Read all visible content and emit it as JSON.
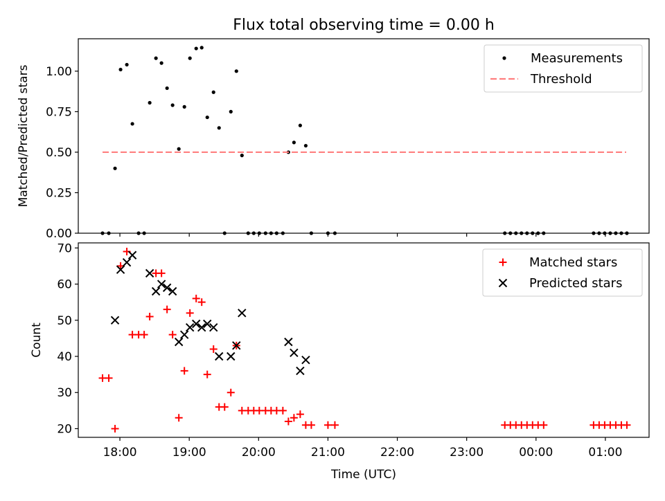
{
  "title": "Flux total observing time = 0.00 h",
  "chart_data": [
    {
      "type": "scatter",
      "ylabel": "Matched/Predicted stars",
      "xlabel": "",
      "xlim": [
        17.4,
        25.63
      ],
      "ylim": [
        0,
        1.2
      ],
      "yticks": [
        0.0,
        0.25,
        0.5,
        0.75,
        1.0
      ],
      "ytick_labels": [
        "0.00",
        "0.25",
        "0.50",
        "0.75",
        "1.00"
      ],
      "legend_position": "top-right",
      "series": [
        {
          "name": "Measurements",
          "marker": "dot",
          "color": "#000000",
          "points": [
            [
              17.75,
              0
            ],
            [
              17.84,
              0
            ],
            [
              17.93,
              0.4
            ],
            [
              18.01,
              1.01
            ],
            [
              18.1,
              1.04
            ],
            [
              18.18,
              0.675
            ],
            [
              18.27,
              0
            ],
            [
              18.35,
              0
            ],
            [
              18.43,
              0.805
            ],
            [
              18.52,
              1.08
            ],
            [
              18.6,
              1.05
            ],
            [
              18.68,
              0.895
            ],
            [
              18.76,
              0.79
            ],
            [
              18.85,
              0.52
            ],
            [
              18.93,
              0.78
            ],
            [
              19.01,
              1.08
            ],
            [
              19.1,
              1.14
            ],
            [
              19.18,
              1.145
            ],
            [
              19.26,
              0.715
            ],
            [
              19.35,
              0.87
            ],
            [
              19.43,
              0.65
            ],
            [
              19.51,
              0
            ],
            [
              19.6,
              0.75
            ],
            [
              19.68,
              1.0
            ],
            [
              19.76,
              0.48
            ],
            [
              19.85,
              0
            ],
            [
              19.93,
              0
            ],
            [
              20.01,
              0
            ],
            [
              20.1,
              0
            ],
            [
              20.18,
              0
            ],
            [
              20.26,
              0
            ],
            [
              20.35,
              0
            ],
            [
              20.43,
              0.5
            ],
            [
              20.51,
              0.56
            ],
            [
              20.6,
              0.665
            ],
            [
              20.68,
              0.54
            ],
            [
              20.76,
              0
            ],
            [
              21.0,
              0
            ],
            [
              21.1,
              0
            ],
            [
              23.55,
              0
            ],
            [
              23.63,
              0
            ],
            [
              23.71,
              0
            ],
            [
              23.79,
              0
            ],
            [
              23.87,
              0
            ],
            [
              23.95,
              0
            ],
            [
              24.03,
              0
            ],
            [
              24.11,
              0
            ],
            [
              24.83,
              0
            ],
            [
              24.91,
              0
            ],
            [
              24.99,
              0
            ],
            [
              25.07,
              0
            ],
            [
              25.15,
              0
            ],
            [
              25.23,
              0
            ],
            [
              25.31,
              0
            ]
          ]
        },
        {
          "name": "Threshold",
          "line_style": "dashed",
          "color": "#ff7f7f",
          "x": [
            17.75,
            25.3
          ],
          "y": [
            0.5,
            0.5
          ]
        }
      ]
    },
    {
      "type": "scatter",
      "ylabel": "Count",
      "xlabel": "Time (UTC)",
      "xlim": [
        17.4,
        25.63
      ],
      "ylim": [
        17.6,
        71.4
      ],
      "yticks": [
        20,
        30,
        40,
        50,
        60,
        70
      ],
      "ytick_labels": [
        "20",
        "30",
        "40",
        "50",
        "60",
        "70"
      ],
      "xticks": [
        18,
        19,
        20,
        21,
        22,
        23,
        24,
        25
      ],
      "xtick_labels": [
        "18:00",
        "19:00",
        "20:00",
        "21:00",
        "22:00",
        "23:00",
        "00:00",
        "01:00"
      ],
      "legend_position": "top-right",
      "series": [
        {
          "name": "Matched stars",
          "marker": "plus",
          "color": "#ff0000",
          "points": [
            [
              17.75,
              34
            ],
            [
              17.84,
              34
            ],
            [
              17.93,
              20
            ],
            [
              18.01,
              65
            ],
            [
              18.1,
              69
            ],
            [
              18.18,
              46
            ],
            [
              18.27,
              46
            ],
            [
              18.35,
              46
            ],
            [
              18.43,
              51
            ],
            [
              18.52,
              63
            ],
            [
              18.6,
              63
            ],
            [
              18.68,
              53
            ],
            [
              18.76,
              46
            ],
            [
              18.85,
              23
            ],
            [
              18.93,
              36
            ],
            [
              19.01,
              52
            ],
            [
              19.1,
              56
            ],
            [
              19.18,
              55
            ],
            [
              19.26,
              35
            ],
            [
              19.35,
              42
            ],
            [
              19.43,
              26
            ],
            [
              19.51,
              26
            ],
            [
              19.6,
              30
            ],
            [
              19.68,
              43
            ],
            [
              19.76,
              25
            ],
            [
              19.85,
              25
            ],
            [
              19.93,
              25
            ],
            [
              20.01,
              25
            ],
            [
              20.1,
              25
            ],
            [
              20.18,
              25
            ],
            [
              20.26,
              25
            ],
            [
              20.35,
              25
            ],
            [
              20.43,
              22
            ],
            [
              20.51,
              23
            ],
            [
              20.6,
              24
            ],
            [
              20.68,
              21
            ],
            [
              20.76,
              21
            ],
            [
              21.0,
              21
            ],
            [
              21.1,
              21
            ],
            [
              23.55,
              21
            ],
            [
              23.63,
              21
            ],
            [
              23.71,
              21
            ],
            [
              23.79,
              21
            ],
            [
              23.87,
              21
            ],
            [
              23.95,
              21
            ],
            [
              24.03,
              21
            ],
            [
              24.11,
              21
            ],
            [
              24.83,
              21
            ],
            [
              24.91,
              21
            ],
            [
              24.99,
              21
            ],
            [
              25.07,
              21
            ],
            [
              25.15,
              21
            ],
            [
              25.23,
              21
            ],
            [
              25.31,
              21
            ]
          ]
        },
        {
          "name": "Predicted stars",
          "marker": "x",
          "color": "#000000",
          "points": [
            [
              17.93,
              50
            ],
            [
              18.01,
              64
            ],
            [
              18.1,
              66
            ],
            [
              18.18,
              68
            ],
            [
              18.43,
              63
            ],
            [
              18.52,
              58
            ],
            [
              18.6,
              60
            ],
            [
              18.68,
              59
            ],
            [
              18.76,
              58
            ],
            [
              18.85,
              44
            ],
            [
              18.93,
              46
            ],
            [
              19.01,
              48
            ],
            [
              19.1,
              49
            ],
            [
              19.18,
              48
            ],
            [
              19.26,
              49
            ],
            [
              19.35,
              48
            ],
            [
              19.43,
              40
            ],
            [
              19.6,
              40
            ],
            [
              19.68,
              43
            ],
            [
              19.76,
              52
            ],
            [
              20.43,
              44
            ],
            [
              20.51,
              41
            ],
            [
              20.6,
              36
            ],
            [
              20.68,
              39
            ]
          ]
        }
      ]
    }
  ]
}
